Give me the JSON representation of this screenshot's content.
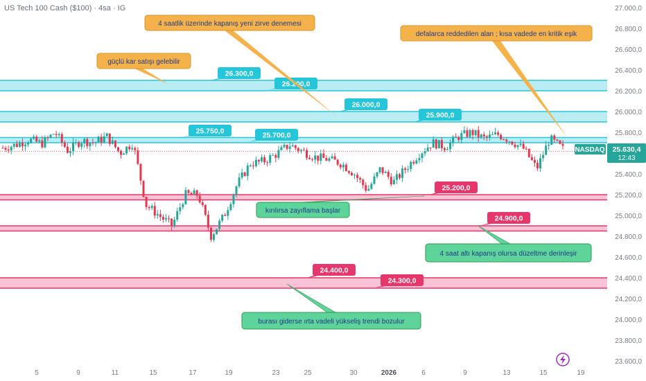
{
  "header": {
    "title": "US Tech 100 Cash ($100) · 4sa · IG"
  },
  "badges": {
    "symbol": "NASDAQ",
    "price": "25.630,4",
    "countdown": "12:43"
  },
  "colors": {
    "up": "#26a69a",
    "down": "#e5374d",
    "resistance_fill": "#b2ebf2",
    "resistance_line": "#26c6da",
    "support_fill": "#f8bbd0",
    "support_line": "#e5376b",
    "orange_note": "#f6b24a",
    "green_note": "#5ed39a",
    "cyan_label": "#26c6da",
    "pink_label": "#e5376b",
    "brand_icon": "#9c27b0"
  },
  "chart_data": {
    "type": "candlestick",
    "title": "US Tech 100 Cash ($100) · 4sa · IG",
    "ylim": [
      23600,
      27000
    ],
    "y_ticks": [
      "27.000,0",
      "26.800,0",
      "26.600,0",
      "26.400,0",
      "26.200,0",
      "26.000,0",
      "25.800,0",
      "25.600,0",
      "25.400,0",
      "25.200,0",
      "25.000,0",
      "24.800,0",
      "24.600,0",
      "24.400,0",
      "24.200,0",
      "24.000,0",
      "23.800,0",
      "23.600,0"
    ],
    "x_ticks": [
      "5",
      "9",
      "11",
      "15",
      "17",
      "19",
      "23",
      "25",
      "30",
      "2026",
      "6",
      "9",
      "13",
      "15",
      "19"
    ],
    "last_price": 25630.4,
    "zones": [
      {
        "type": "resistance",
        "low": 26200,
        "high": 26300
      },
      {
        "type": "resistance",
        "low": 25900,
        "high": 26000
      },
      {
        "type": "resistance",
        "low": 25700,
        "high": 25750
      },
      {
        "type": "support",
        "low": 25150,
        "high": 25200
      },
      {
        "type": "support",
        "low": 24850,
        "high": 24900
      },
      {
        "type": "support",
        "low": 24300,
        "high": 24400
      }
    ],
    "price_labels": [
      {
        "text": "26.300,0",
        "kind": "resistance"
      },
      {
        "text": "26.200,0",
        "kind": "resistance"
      },
      {
        "text": "26.000,0",
        "kind": "resistance"
      },
      {
        "text": "25.900,0",
        "kind": "resistance"
      },
      {
        "text": "25.750,0",
        "kind": "resistance"
      },
      {
        "text": "25.700,0",
        "kind": "resistance"
      },
      {
        "text": "25.200,0",
        "kind": "support"
      },
      {
        "text": "24.900,0",
        "kind": "support"
      },
      {
        "text": "24.400,0",
        "kind": "support"
      },
      {
        "text": "24.300,0",
        "kind": "support"
      }
    ],
    "annotations": [
      {
        "text": "4 saatlik üzerinde kapanış yeni zirve denemesi",
        "kind": "orange"
      },
      {
        "text": "defalarca reddedilen alan ; kısa vadede en kritik eşik",
        "kind": "orange"
      },
      {
        "text": "güçlü kar satışı gelebilir",
        "kind": "orange"
      },
      {
        "text": "kırılırsa zayıflama başlar",
        "kind": "green"
      },
      {
        "text": "4 saat altı kapanış olursa düzeltme derinleşir",
        "kind": "green"
      },
      {
        "text": "burası giderse ırta vadeli yükseliş trendi bozulur",
        "kind": "green"
      }
    ],
    "series": [
      {
        "anchors": [
          [
            25650,
            25700
          ],
          [
            25680,
            25720
          ],
          [
            25730,
            25660
          ],
          [
            25690,
            25720
          ],
          [
            25800,
            25650
          ],
          [
            25620,
            25600
          ],
          [
            25720,
            25620
          ],
          [
            25700,
            25720
          ],
          [
            25760,
            25580
          ],
          [
            25600,
            25700
          ],
          [
            25700,
            25600
          ],
          [
            25100,
            25200
          ],
          [
            25000,
            24950
          ],
          [
            24900,
            25100
          ],
          [
            25200,
            25000
          ],
          [
            25200,
            24720
          ],
          [
            24800,
            24920
          ],
          [
            25000,
            25200
          ],
          [
            25300,
            25450
          ],
          [
            25500,
            25500
          ],
          [
            25520,
            25540
          ],
          [
            25590,
            25600
          ],
          [
            25680,
            25640
          ],
          [
            25620,
            25560
          ],
          [
            25560,
            25580
          ],
          [
            25540,
            25500
          ],
          [
            25500,
            25420
          ],
          [
            25400,
            25200
          ],
          [
            25240,
            25540
          ],
          [
            25450,
            25320
          ],
          [
            25320,
            25280
          ],
          [
            25460,
            25540
          ],
          [
            25600,
            25720
          ],
          [
            25700,
            25560
          ],
          [
            25660,
            25620
          ],
          [
            25760,
            25700
          ],
          [
            25800,
            25700
          ],
          [
            25740,
            25720
          ],
          [
            25780,
            25700
          ],
          [
            25720,
            25650
          ],
          [
            25640,
            25400
          ],
          [
            25450,
            25520
          ],
          [
            25740,
            25600
          ],
          [
            25640,
            25630
          ]
        ]
      }
    ]
  }
}
